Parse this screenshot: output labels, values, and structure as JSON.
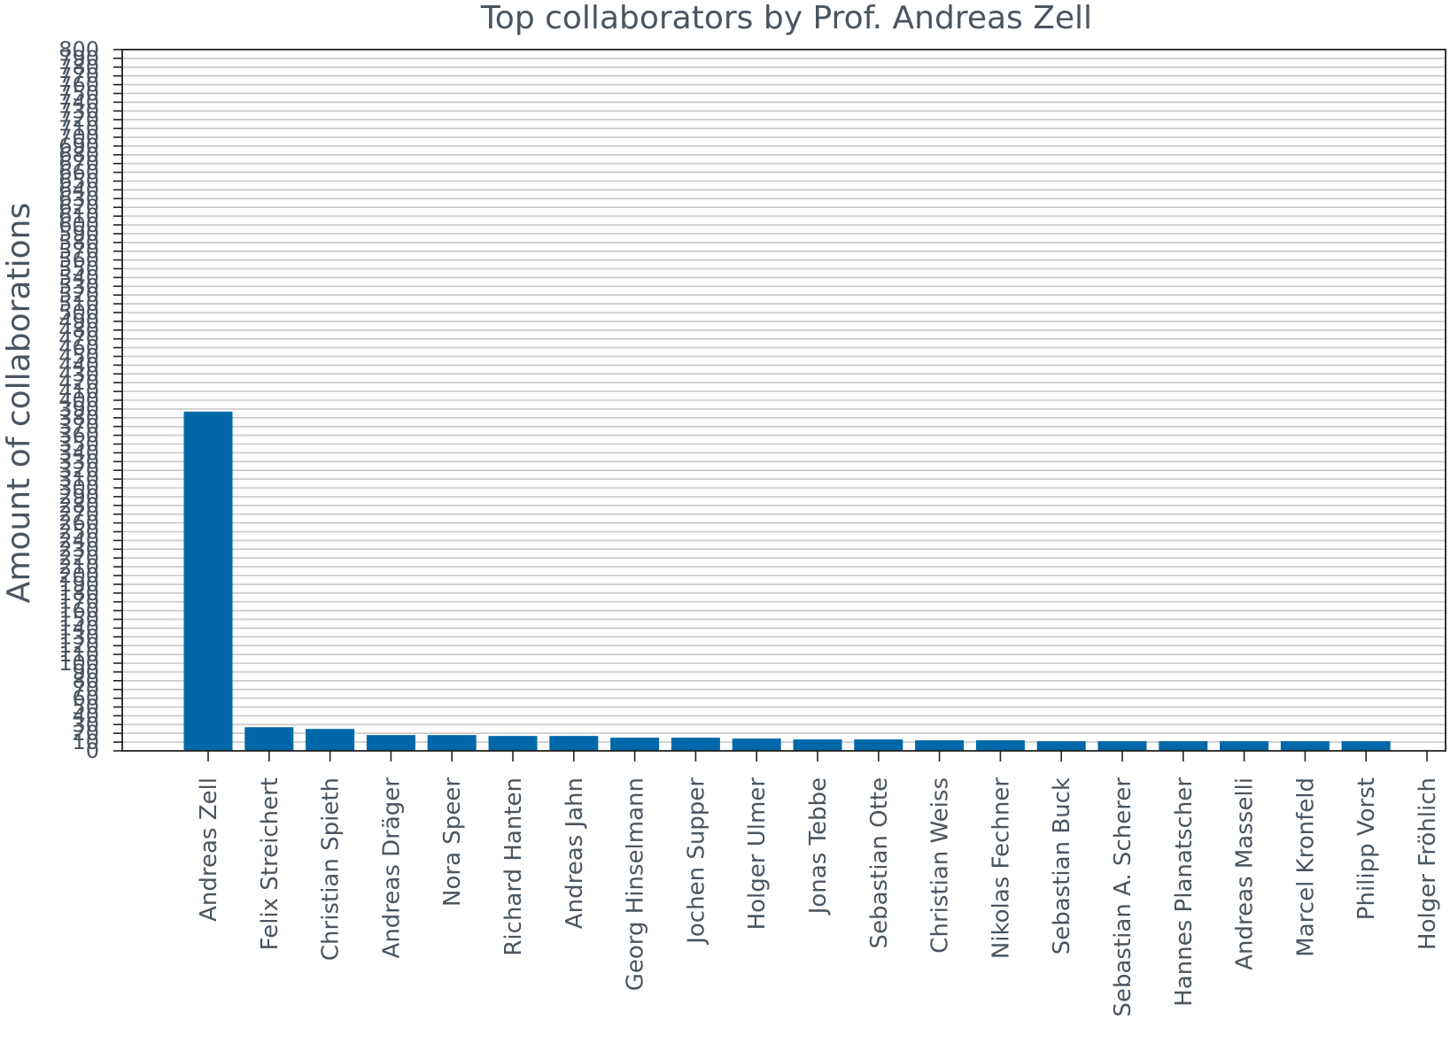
{
  "chart_data": {
    "type": "bar",
    "title": "Top collaborators by Prof. Andreas Zell",
    "ylabel": "Amount of collaborations",
    "xlabel": "",
    "ylim": [
      0,
      800
    ],
    "ytick_step": 10,
    "grid": true,
    "bar_color": "#0068a8",
    "categories": [
      "Andreas Zell",
      "Felix Streichert",
      "Christian Spieth",
      "Andreas Dräger",
      "Nora Speer",
      "Richard Hanten",
      "Andreas Jahn",
      "Georg Hinselmann",
      "Jochen Supper",
      "Holger Ulmer",
      "Jonas Tebbe",
      "Sebastian Otte",
      "Christian Weiss",
      "Nikolas Fechner",
      "Sebastian Buck",
      "Sebastian A. Scherer",
      "Hannes Planatscher",
      "Andreas Masselli",
      "Marcel Kronfeld",
      "Philipp Vorst",
      "Holger Fröhlich"
    ],
    "values": [
      387,
      27,
      25,
      18,
      18,
      17,
      17,
      15,
      15,
      14,
      13,
      13,
      12,
      12,
      11,
      11,
      11,
      11,
      11,
      11,
      0
    ]
  }
}
